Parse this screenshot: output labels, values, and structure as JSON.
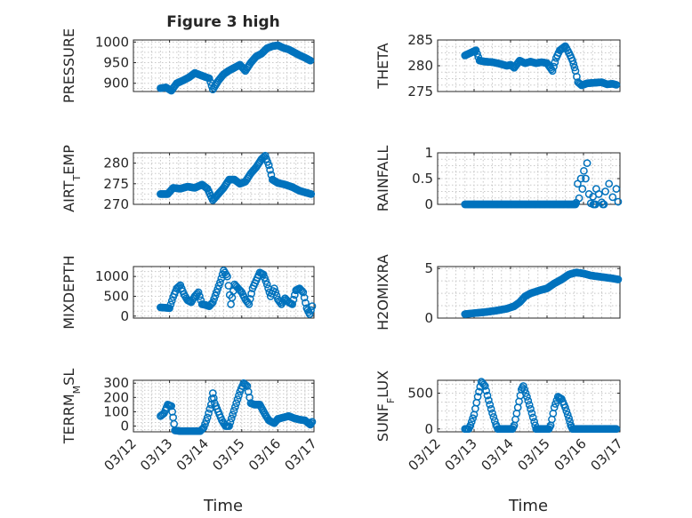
{
  "figure": {
    "title": "Figure 3 high",
    "xlabel": "Time"
  },
  "x_ticks": [
    "03/12",
    "03/13",
    "03/14",
    "03/15",
    "03/16",
    "03/17"
  ],
  "marker_color": "#0072BD",
  "chart_data": [
    {
      "type": "scatter",
      "name": "pressure",
      "ylabel": "PRESSURE",
      "xlim": [
        0,
        5
      ],
      "ylim": [
        880,
        1005
      ],
      "yticks": [
        900,
        950,
        1000
      ],
      "yticklabels": [
        "900",
        "950",
        "1000"
      ],
      "keys": [
        [
          0.75,
          888
        ],
        [
          0.9,
          890
        ],
        [
          1.05,
          882
        ],
        [
          1.2,
          900
        ],
        [
          1.4,
          908
        ],
        [
          1.55,
          915
        ],
        [
          1.7,
          925
        ],
        [
          1.85,
          920
        ],
        [
          2.0,
          915
        ],
        [
          2.1,
          912
        ],
        [
          2.2,
          885
        ],
        [
          2.35,
          906
        ],
        [
          2.5,
          922
        ],
        [
          2.65,
          931
        ],
        [
          2.8,
          938
        ],
        [
          2.95,
          945
        ],
        [
          3.1,
          930
        ],
        [
          3.25,
          950
        ],
        [
          3.4,
          965
        ],
        [
          3.55,
          972
        ],
        [
          3.7,
          985
        ],
        [
          3.85,
          990
        ],
        [
          4.0,
          992
        ],
        [
          4.15,
          986
        ],
        [
          4.3,
          982
        ],
        [
          4.45,
          975
        ],
        [
          4.6,
          968
        ],
        [
          4.75,
          962
        ],
        [
          4.9,
          955
        ]
      ]
    },
    {
      "type": "scatter",
      "name": "theta",
      "ylabel": "THETA",
      "xlim": [
        0,
        5
      ],
      "ylim": [
        275,
        285
      ],
      "yticks": [
        275,
        280,
        285
      ],
      "yticklabels": [
        "275",
        "280",
        "285"
      ],
      "keys": [
        [
          0.75,
          282
        ],
        [
          0.9,
          282.5
        ],
        [
          1.05,
          283
        ],
        [
          1.15,
          281
        ],
        [
          1.3,
          280.8
        ],
        [
          1.5,
          280.7
        ],
        [
          1.7,
          280.4
        ],
        [
          1.9,
          280
        ],
        [
          2.0,
          280.2
        ],
        [
          2.1,
          279.6
        ],
        [
          2.25,
          281
        ],
        [
          2.4,
          280.5
        ],
        [
          2.55,
          280.8
        ],
        [
          2.7,
          280.5
        ],
        [
          2.85,
          280.7
        ],
        [
          3.0,
          280.5
        ],
        [
          3.15,
          279
        ],
        [
          3.25,
          281.5
        ],
        [
          3.35,
          283
        ],
        [
          3.5,
          283.8
        ],
        [
          3.6,
          282.5
        ],
        [
          3.7,
          281
        ],
        [
          3.78,
          279
        ],
        [
          3.85,
          276.8
        ],
        [
          3.95,
          276.2
        ],
        [
          4.1,
          276.6
        ],
        [
          4.3,
          276.7
        ],
        [
          4.5,
          276.8
        ],
        [
          4.65,
          276.4
        ],
        [
          4.8,
          276.5
        ],
        [
          4.9,
          276.3
        ]
      ]
    },
    {
      "type": "scatter",
      "name": "air_temp",
      "ylabel": "AIR_TEMP",
      "xlim": [
        0,
        5
      ],
      "ylim": [
        270,
        282.5
      ],
      "yticks": [
        270,
        275,
        280
      ],
      "yticklabels": [
        "270",
        "275",
        "280"
      ],
      "keys": [
        [
          0.75,
          272.5
        ],
        [
          0.95,
          272.5
        ],
        [
          1.1,
          274
        ],
        [
          1.3,
          273.8
        ],
        [
          1.5,
          274.3
        ],
        [
          1.7,
          274
        ],
        [
          1.9,
          274.8
        ],
        [
          2.05,
          273.8
        ],
        [
          2.2,
          271
        ],
        [
          2.35,
          272.5
        ],
        [
          2.5,
          274
        ],
        [
          2.65,
          276
        ],
        [
          2.8,
          276
        ],
        [
          2.95,
          275
        ],
        [
          3.1,
          275.5
        ],
        [
          3.25,
          277.5
        ],
        [
          3.4,
          279
        ],
        [
          3.55,
          281
        ],
        [
          3.65,
          281.8
        ],
        [
          3.75,
          279.5
        ],
        [
          3.85,
          276
        ],
        [
          4.0,
          275.2
        ],
        [
          4.2,
          274.8
        ],
        [
          4.4,
          274.2
        ],
        [
          4.6,
          273.3
        ],
        [
          4.8,
          272.8
        ],
        [
          4.92,
          272.5
        ]
      ]
    },
    {
      "type": "scatter",
      "name": "rainfall",
      "ylabel": "RAINFALL",
      "xlim": [
        0,
        5
      ],
      "ylim": [
        0,
        1
      ],
      "yticks": [
        0,
        0.5,
        1
      ],
      "yticklabels": [
        "0",
        "0.5",
        "1"
      ],
      "points": [
        [
          3.8,
          0.03
        ],
        [
          3.84,
          0.4
        ],
        [
          3.88,
          0.12
        ],
        [
          3.93,
          0.5
        ],
        [
          3.97,
          0.3
        ],
        [
          4.01,
          0.65
        ],
        [
          4.06,
          0.5
        ],
        [
          4.1,
          0.8
        ],
        [
          4.15,
          0.2
        ],
        [
          4.2,
          0.02
        ],
        [
          4.26,
          0.15
        ],
        [
          4.35,
          0.3
        ],
        [
          4.42,
          0.2
        ],
        [
          4.5,
          0.04
        ],
        [
          4.6,
          0.25
        ],
        [
          4.7,
          0.4
        ],
        [
          4.8,
          0.14
        ],
        [
          4.9,
          0.3
        ],
        [
          4.95,
          0.05
        ]
      ],
      "zero_runs": [
        [
          0.75,
          3.78
        ],
        [
          4.27,
          4.33
        ],
        [
          4.53,
          4.57
        ]
      ]
    },
    {
      "type": "scatter",
      "name": "mixdepth",
      "ylabel": "MIXDEPTH",
      "xlim": [
        0,
        5
      ],
      "ylim": [
        -50,
        1250
      ],
      "yticks": [
        0,
        500,
        1000
      ],
      "yticklabels": [
        "0",
        "500",
        "1000"
      ],
      "keys": [
        [
          0.75,
          220
        ],
        [
          0.9,
          210
        ],
        [
          1.0,
          200
        ],
        [
          1.1,
          480
        ],
        [
          1.2,
          700
        ],
        [
          1.3,
          780
        ],
        [
          1.4,
          550
        ],
        [
          1.5,
          400
        ],
        [
          1.6,
          350
        ],
        [
          1.7,
          500
        ],
        [
          1.8,
          600
        ],
        [
          1.9,
          300
        ],
        [
          2.0,
          280
        ],
        [
          2.1,
          250
        ],
        [
          2.2,
          350
        ],
        [
          2.3,
          600
        ],
        [
          2.4,
          850
        ],
        [
          2.5,
          1150
        ],
        [
          2.6,
          1000
        ],
        [
          2.7,
          300
        ],
        [
          2.8,
          800
        ],
        [
          2.9,
          700
        ],
        [
          3.0,
          600
        ],
        [
          3.1,
          420
        ],
        [
          3.2,
          300
        ],
        [
          3.3,
          700
        ],
        [
          3.4,
          900
        ],
        [
          3.5,
          1100
        ],
        [
          3.6,
          1050
        ],
        [
          3.7,
          800
        ],
        [
          3.8,
          500
        ],
        [
          3.9,
          700
        ],
        [
          4.0,
          420
        ],
        [
          4.1,
          300
        ],
        [
          4.2,
          450
        ],
        [
          4.3,
          350
        ],
        [
          4.4,
          300
        ],
        [
          4.5,
          650
        ],
        [
          4.6,
          700
        ],
        [
          4.7,
          600
        ],
        [
          4.8,
          200
        ],
        [
          4.88,
          50
        ],
        [
          4.95,
          250
        ]
      ]
    },
    {
      "type": "scatter",
      "name": "h2omixra",
      "ylabel": "H2OMIXRA",
      "xlim": [
        0,
        5
      ],
      "ylim": [
        0,
        5.2
      ],
      "yticks": [
        0,
        5
      ],
      "yticklabels": [
        "0",
        "5"
      ],
      "keys": [
        [
          0.75,
          0.4
        ],
        [
          1.0,
          0.5
        ],
        [
          1.3,
          0.6
        ],
        [
          1.6,
          0.75
        ],
        [
          1.9,
          0.95
        ],
        [
          2.1,
          1.2
        ],
        [
          2.25,
          1.6
        ],
        [
          2.4,
          2.2
        ],
        [
          2.55,
          2.5
        ],
        [
          2.8,
          2.8
        ],
        [
          3.0,
          3.0
        ],
        [
          3.2,
          3.5
        ],
        [
          3.4,
          3.9
        ],
        [
          3.6,
          4.4
        ],
        [
          3.8,
          4.6
        ],
        [
          4.0,
          4.5
        ],
        [
          4.2,
          4.3
        ],
        [
          4.4,
          4.2
        ],
        [
          4.6,
          4.1
        ],
        [
          4.8,
          4.0
        ],
        [
          4.95,
          3.9
        ]
      ]
    },
    {
      "type": "scatter",
      "name": "terr_msl",
      "ylabel": "TERR_MSL",
      "xlim": [
        0,
        5
      ],
      "ylim": [
        -40,
        320
      ],
      "yticks": [
        0,
        100,
        200,
        300
      ],
      "yticklabels": [
        "0",
        "100",
        "200",
        "300"
      ],
      "keys": [
        [
          0.75,
          70
        ],
        [
          0.85,
          90
        ],
        [
          0.95,
          150
        ],
        [
          1.05,
          140
        ],
        [
          1.1,
          60
        ],
        [
          1.15,
          -30
        ],
        [
          1.3,
          -35
        ],
        [
          1.5,
          -35
        ],
        [
          1.7,
          -35
        ],
        [
          1.85,
          -35
        ],
        [
          1.95,
          -10
        ],
        [
          2.05,
          60
        ],
        [
          2.15,
          150
        ],
        [
          2.2,
          230
        ],
        [
          2.25,
          160
        ],
        [
          2.35,
          100
        ],
        [
          2.45,
          40
        ],
        [
          2.55,
          0
        ],
        [
          2.65,
          0
        ],
        [
          2.75,
          80
        ],
        [
          2.85,
          160
        ],
        [
          2.95,
          240
        ],
        [
          3.05,
          300
        ],
        [
          3.15,
          280
        ],
        [
          3.25,
          160
        ],
        [
          3.35,
          150
        ],
        [
          3.5,
          150
        ],
        [
          3.65,
          80
        ],
        [
          3.75,
          40
        ],
        [
          3.9,
          20
        ],
        [
          4.0,
          50
        ],
        [
          4.15,
          60
        ],
        [
          4.3,
          70
        ],
        [
          4.45,
          55
        ],
        [
          4.6,
          45
        ],
        [
          4.75,
          40
        ],
        [
          4.9,
          10
        ],
        [
          4.95,
          30
        ]
      ]
    },
    {
      "type": "scatter",
      "name": "sun_flux",
      "ylabel": "SUN_FLUX",
      "xlim": [
        0,
        5
      ],
      "ylim": [
        -40,
        680
      ],
      "yticks": [
        0,
        500
      ],
      "yticklabels": [
        "0",
        "500"
      ],
      "keys": [
        [
          0.75,
          0
        ],
        [
          0.85,
          0
        ],
        [
          0.9,
          50
        ],
        [
          1.0,
          200
        ],
        [
          1.1,
          450
        ],
        [
          1.2,
          660
        ],
        [
          1.3,
          600
        ],
        [
          1.4,
          400
        ],
        [
          1.5,
          220
        ],
        [
          1.6,
          60
        ],
        [
          1.65,
          0
        ],
        [
          2.05,
          0
        ],
        [
          2.1,
          50
        ],
        [
          2.2,
          300
        ],
        [
          2.3,
          550
        ],
        [
          2.35,
          600
        ],
        [
          2.45,
          450
        ],
        [
          2.55,
          280
        ],
        [
          2.65,
          100
        ],
        [
          2.7,
          0
        ],
        [
          3.05,
          0
        ],
        [
          3.1,
          50
        ],
        [
          3.2,
          300
        ],
        [
          3.3,
          450
        ],
        [
          3.4,
          420
        ],
        [
          3.5,
          300
        ],
        [
          3.6,
          150
        ],
        [
          3.65,
          50
        ],
        [
          3.7,
          0
        ],
        [
          4.9,
          0
        ]
      ]
    }
  ]
}
